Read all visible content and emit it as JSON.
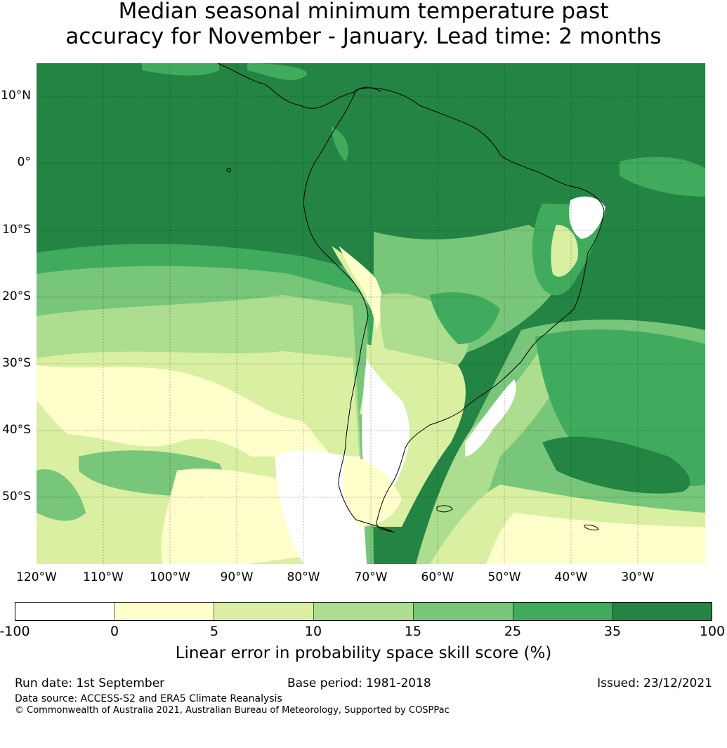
{
  "title": {
    "line1": "Median seasonal minimum temperature past",
    "line2": "accuracy for November - January. Lead time: 2 months"
  },
  "map": {
    "lat_labels": [
      "10°N",
      "0°",
      "10°S",
      "20°S",
      "30°S",
      "40°S",
      "50°S"
    ],
    "lon_labels": [
      "120°W",
      "110°W",
      "100°W",
      "90°W",
      "80°W",
      "70°W",
      "60°W",
      "50°W",
      "40°W",
      "30°W"
    ]
  },
  "colorbar": {
    "ticks": [
      "-100",
      "0",
      "5",
      "10",
      "15",
      "25",
      "35",
      "100"
    ],
    "colors": [
      "#ffffff",
      "#ffffcc",
      "#d9f0a3",
      "#addd8e",
      "#78c679",
      "#41ab5d",
      "#238443"
    ],
    "label": "Linear error in probability space skill score (%)"
  },
  "footer": {
    "run_date": "Run date: 1st September",
    "base_period": "Base period: 1981-2018",
    "issued": "Issued: 23/12/2021",
    "data_source": "Data source: ACCESS-S2 and ERA5 Climate Reanalysis",
    "copyright": "© Commonwealth of Australia 2021, Australian Bureau of Meteorology, Supported by COSPPac"
  }
}
